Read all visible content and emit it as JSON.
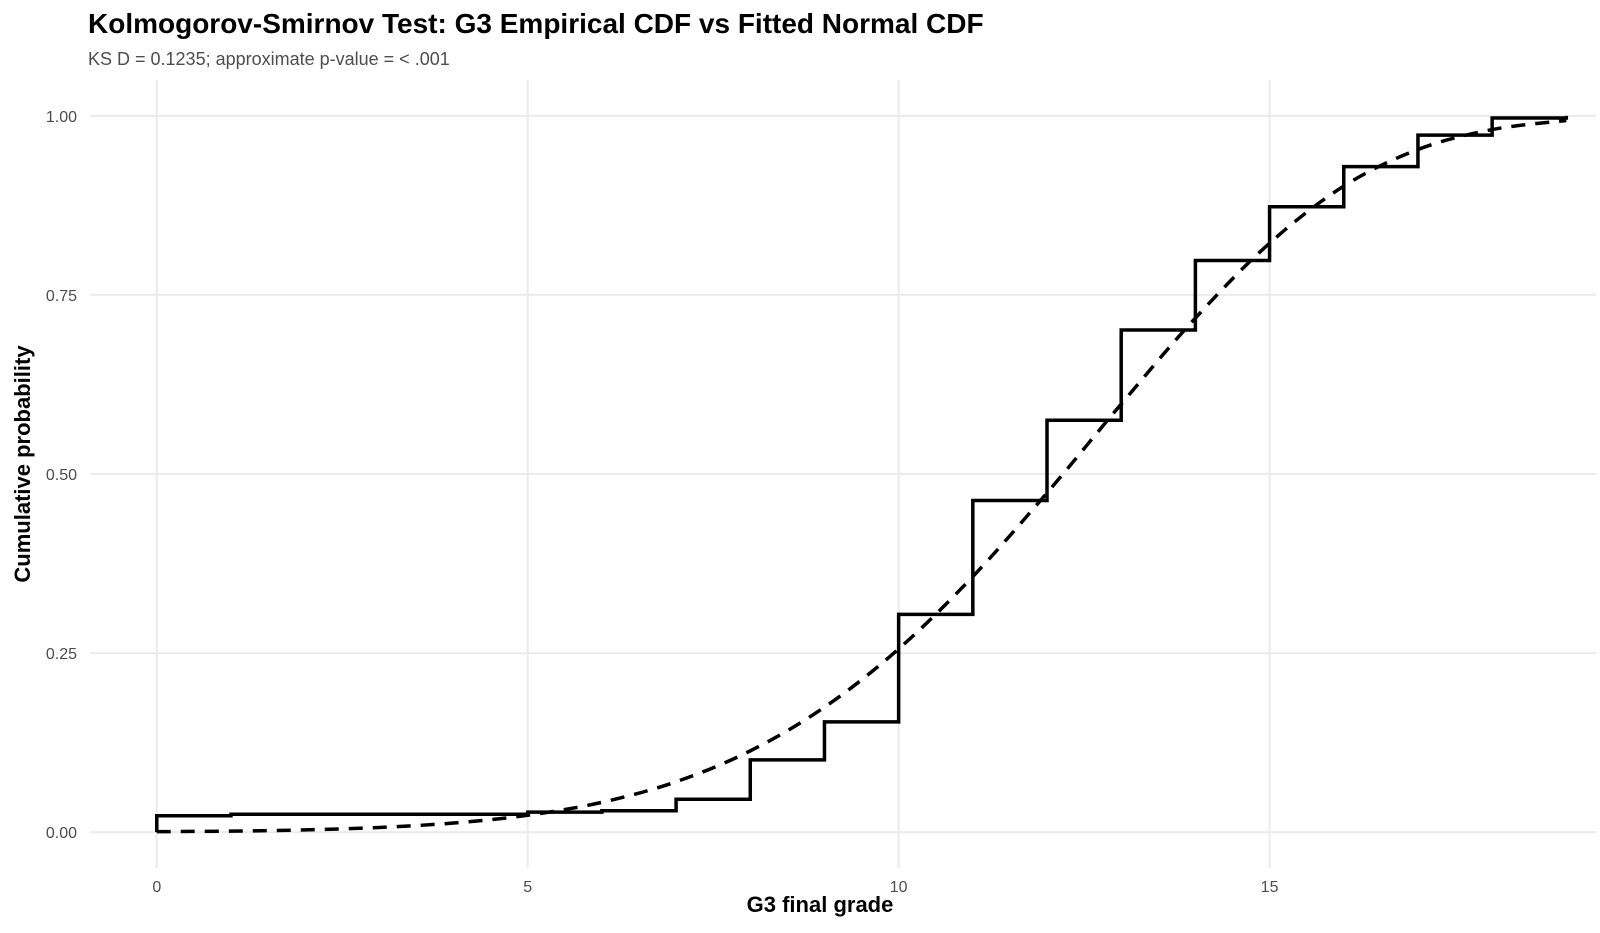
{
  "chart_data": {
    "type": "line",
    "title": "Kolmogorov-Smirnov Test: G3 Empirical CDF vs Fitted Normal CDF",
    "subtitle": "KS D = 0.1235; approximate p-value = < .001",
    "xlabel": "G3 final grade",
    "ylabel": "Cumulative probability",
    "xlim": [
      -0.9,
      19.4
    ],
    "ylim": [
      -0.05,
      1.05
    ],
    "x_ticks": [
      0,
      5,
      10,
      15
    ],
    "x_tick_labels": [
      "0",
      "5",
      "10",
      "15"
    ],
    "y_ticks": [
      0,
      0.25,
      0.5,
      0.75,
      1.0
    ],
    "y_tick_labels": [
      "0.00",
      "0.25",
      "0.50",
      "0.75",
      "1.00"
    ],
    "grid": true,
    "series": [
      {
        "kind": "step",
        "style": "solid",
        "x": [
          0,
          1,
          4,
          5,
          6,
          7,
          8,
          9,
          10,
          11,
          12,
          13,
          14,
          15,
          16,
          17,
          18,
          19
        ],
        "y": [
          0.023,
          0.025,
          0.025,
          0.028,
          0.03,
          0.046,
          0.101,
          0.154,
          0.304,
          0.463,
          0.575,
          0.701,
          0.798,
          0.873,
          0.929,
          0.973,
          0.997,
          1.0
        ]
      },
      {
        "kind": "curve",
        "style": "dashed",
        "x": [
          0,
          1,
          2,
          3,
          4,
          5,
          6,
          7,
          8,
          9,
          10,
          11,
          12,
          13,
          14,
          15,
          16,
          17,
          18,
          19
        ],
        "y": [
          0.0007,
          0.0015,
          0.0032,
          0.0066,
          0.0128,
          0.0236,
          0.0417,
          0.0704,
          0.1135,
          0.1745,
          0.2558,
          0.3569,
          0.4737,
          0.5977,
          0.7177,
          0.8222,
          0.9018,
          0.953,
          0.9808,
          0.9934
        ]
      }
    ]
  }
}
